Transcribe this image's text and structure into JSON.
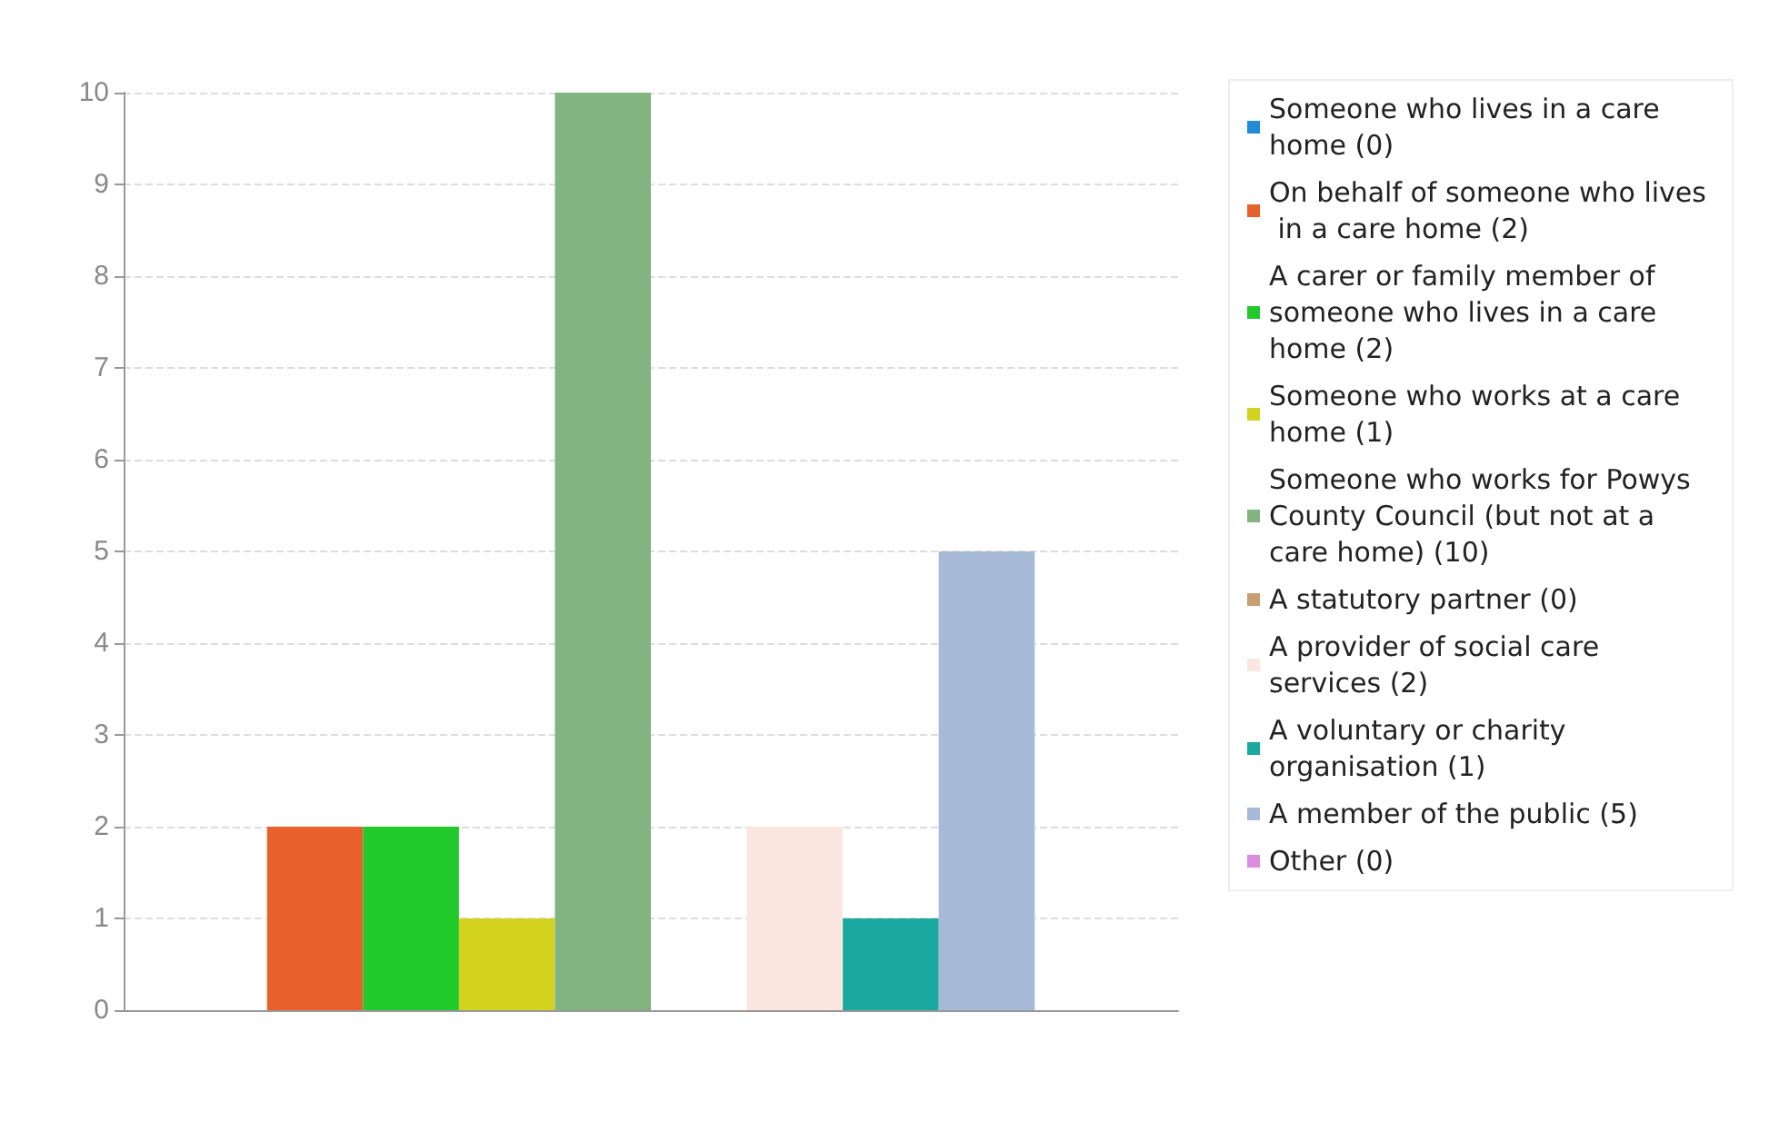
{
  "chart_data": {
    "type": "bar",
    "categories": [
      null
    ],
    "ylim": [
      0,
      10
    ],
    "yticks": [
      0,
      1,
      2,
      3,
      4,
      5,
      6,
      7,
      8,
      9,
      10
    ],
    "grid": "y",
    "legend": "right",
    "tick_labels": "y",
    "series": [
      {
        "name": "Someone who lives in a care home (0)",
        "color": "#1f8dd6",
        "values": [
          0
        ]
      },
      {
        "name": "On behalf of someone who lives in a care home (2)",
        "color": "#e8612c",
        "values": [
          2
        ]
      },
      {
        "name": "A carer or family member of someone who lives in a care home (2)",
        "color": "#21c92a",
        "values": [
          2
        ]
      },
      {
        "name": "Someone who works at a care home (1)",
        "color": "#d2d21f",
        "values": [
          1
        ]
      },
      {
        "name": "Someone who works for Powys County Council (but not at a care home) (10)",
        "color": "#82b482",
        "values": [
          10
        ]
      },
      {
        "name": "A statutory partner (0)",
        "color": "#c8a070",
        "values": [
          0
        ]
      },
      {
        "name": "A provider of social care services (2)",
        "color": "#fae6de",
        "values": [
          2
        ]
      },
      {
        "name": "A voluntary or charity organisation (1)",
        "color": "#1aa8a0",
        "values": [
          1
        ]
      },
      {
        "name": "A member of the public (5)",
        "color": "#a6b9d6",
        "values": [
          5
        ]
      },
      {
        "name": "Other (0)",
        "color": "#dc8cdc",
        "values": [
          0
        ]
      }
    ]
  }
}
